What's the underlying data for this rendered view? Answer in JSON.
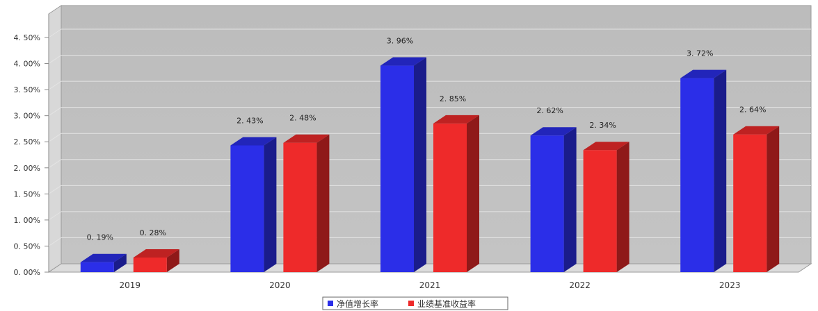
{
  "chart_data": {
    "type": "bar",
    "categories": [
      "2019",
      "2020",
      "2021",
      "2022",
      "2023"
    ],
    "series": [
      {
        "name": "净值增长率",
        "values": [
          0.19,
          2.43,
          3.96,
          2.62,
          3.72
        ],
        "labels": [
          "0. 19%",
          "2. 43%",
          "3. 96%",
          "2. 62%",
          "3. 72%"
        ],
        "color": "#2b2ee8"
      },
      {
        "name": "业绩基准收益率",
        "values": [
          0.28,
          2.48,
          2.85,
          2.34,
          2.64
        ],
        "labels": [
          "0. 28%",
          "2. 48%",
          "2. 85%",
          "2. 34%",
          "2. 64%"
        ],
        "color": "#ee2a2a"
      }
    ],
    "yticks": [
      "0. 00%",
      "0. 50%",
      "1. 00%",
      "1. 50%",
      "2. 00%",
      "2. 50%",
      "3. 00%",
      "3. 50%",
      "4. 00%",
      "4. 50%"
    ],
    "ylim": [
      0,
      4.5
    ],
    "grid": true,
    "legend_position": "bottom-center",
    "plot_background": "#bdbdbd"
  }
}
